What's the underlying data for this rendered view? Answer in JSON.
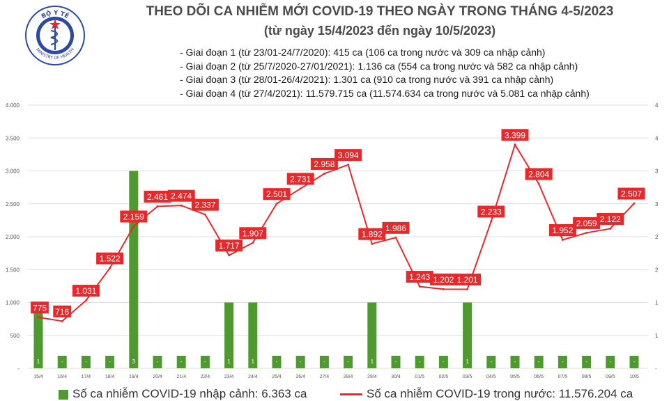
{
  "header": {
    "title_line1": "THEO DÕI CA NHIỄM MỚI COVID-19 THEO NGÀY TRONG THÁNG 4-5/2023",
    "title_line2": "(từ ngày 15/4/2023 đến ngày 10/5/2023)",
    "notes": [
      "- Giai đoạn 1 (từ 23/01-24/7/2020): 415 ca (106 ca trong nước và 309 ca nhập cảnh)",
      "- Giai đoạn 2 (từ 25/7/2020-27/01/2021): 1.136 ca (554 ca trong nước và 582 ca nhập cảnh)",
      "- Giai đoạn 3 (từ 28/01-26/4/2021): 1.301 ca (910 ca trong nước và 391 ca nhập cảnh)",
      "- Giai đoạn 4 (từ 27/4/2021): 11.579.715 ca (11.574.634 ca trong nước và 5.081 ca nhập cảnh)"
    ]
  },
  "logo": {
    "top_text": "BỘ Y TẾ",
    "bottom_text": "MINISTRY OF HEALTH"
  },
  "colors": {
    "bar": "#4f9a2f",
    "line": "#e8292b",
    "label_bg": "#e8292b",
    "label_text": "#ffffff"
  },
  "chart_data": {
    "type": "bar+line",
    "categories": [
      "15/4",
      "16/4",
      "17/4",
      "18/4",
      "19/4",
      "20/4",
      "21/4",
      "22/4",
      "23/4",
      "24/4",
      "25/4",
      "26/4",
      "27/4",
      "28/4",
      "29/4",
      "30/4",
      "01/5",
      "02/5",
      "03/5",
      "04/5",
      "05/5",
      "06/5",
      "07/5",
      "08/5",
      "09/5",
      "10/5"
    ],
    "left_axis": {
      "ylim": [
        0,
        4000
      ],
      "ticks": [
        "-",
        "500",
        "1.000",
        "1.500",
        "2.000",
        "2.500",
        "3.000",
        "3.500",
        "4.000"
      ]
    },
    "right_axis": {
      "ylim": [
        0,
        4
      ],
      "ticks": [
        "-",
        "1",
        "1",
        "2",
        "2",
        "3",
        "3",
        "4",
        "4"
      ]
    },
    "series": [
      {
        "name": "Số ca nhiễm COVID-19 nhập cảnh: 6.363 ca",
        "type": "bar",
        "axis": "right",
        "values": [
          1,
          0,
          0,
          0,
          3,
          0,
          0,
          0,
          1,
          1,
          0,
          0,
          0,
          0,
          1,
          0,
          0,
          0,
          1,
          0,
          0,
          0,
          0,
          0,
          0,
          0
        ],
        "labels": [
          "1",
          "-",
          "-",
          "-",
          "3",
          "-",
          "-",
          "-",
          "1",
          "1",
          "-",
          "-",
          "-",
          "-",
          "1",
          "-",
          "-",
          "-",
          "1",
          "-",
          "-",
          "-",
          "-",
          "-",
          "-",
          "-"
        ]
      },
      {
        "name": "Số ca nhiễm COVID-19 trong nước: 11.576.204 ca",
        "type": "line",
        "axis": "left",
        "values": [
          775,
          716,
          1031,
          1522,
          2159,
          2461,
          2474,
          2337,
          1717,
          1907,
          2501,
          2731,
          2958,
          3094,
          1892,
          1986,
          1243,
          1202,
          1201,
          2233,
          3399,
          2804,
          1952,
          2059,
          2122,
          2507
        ],
        "labels": [
          "775",
          "716",
          "1.031",
          "1.522",
          "2.159",
          "2.461",
          "2.474",
          "2.337",
          "1.717",
          "1.907",
          "2.501",
          "2.731",
          "2.958",
          "3.094",
          "1.892",
          "1.986",
          "1.243",
          "1.202",
          "1.201",
          "2.233",
          "3.399",
          "2.804",
          "1.952",
          "2.059",
          "2.122",
          "2.507"
        ]
      }
    ],
    "legend": [
      "Số ca nhiễm COVID-19 nhập cảnh: 6.363 ca",
      "Số ca nhiễm COVID-19 trong nước: 11.576.204 ca"
    ],
    "legend_position": "bottom"
  }
}
